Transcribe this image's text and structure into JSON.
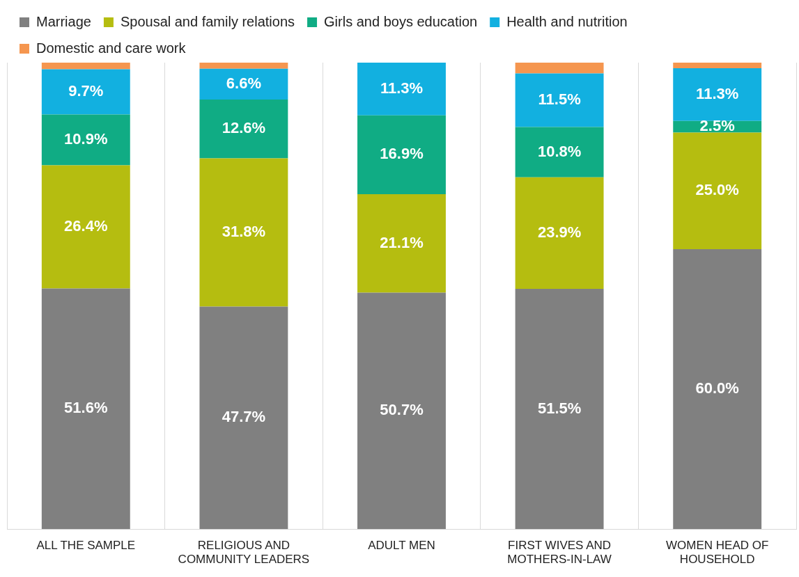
{
  "chart_data": {
    "type": "bar",
    "stacked": true,
    "categories": [
      "ALL THE SAMPLE",
      "RELIGIOUS AND COMMUNITY LEADERS",
      "ADULT MEN",
      "FIRST WIVES AND MOTHERS-IN-LAW",
      "WOMEN HEAD OF HOUSEHOLD"
    ],
    "series": [
      {
        "name": "Marriage",
        "color": "#808080",
        "values": [
          51.6,
          47.7,
          50.7,
          51.5,
          60.0
        ],
        "value_labels": [
          "51.6%",
          "47.7%",
          "50.7%",
          "51.5%",
          "60.0%"
        ]
      },
      {
        "name": "Spousal and family relations",
        "color": "#b5bd10",
        "values": [
          26.4,
          31.8,
          21.1,
          23.9,
          25.0
        ],
        "value_labels": [
          "26.4%",
          "31.8%",
          "21.1%",
          "23.9%",
          "25.0%"
        ]
      },
      {
        "name": "Girls and boys education",
        "color": "#10ac84",
        "values": [
          10.9,
          12.6,
          16.9,
          10.8,
          2.5
        ],
        "value_labels": [
          "10.9%",
          "12.6%",
          "16.9%",
          "10.8%",
          "2.5%"
        ]
      },
      {
        "name": "Health and nutrition",
        "color": "#12b0e0",
        "values": [
          9.7,
          6.6,
          11.3,
          11.5,
          11.3
        ],
        "value_labels": [
          "9.7%",
          "6.6%",
          "11.3%",
          "11.5%",
          "11.3%"
        ]
      },
      {
        "name": "Domestic and care work",
        "color": "#f5964f",
        "values": [
          1.4,
          1.3,
          0,
          2.3,
          1.2
        ],
        "value_labels": [
          null,
          null,
          null,
          null,
          null
        ]
      }
    ],
    "ylim": [
      0,
      100
    ],
    "tick_labels": "x",
    "grid": "x",
    "legend": "top"
  }
}
